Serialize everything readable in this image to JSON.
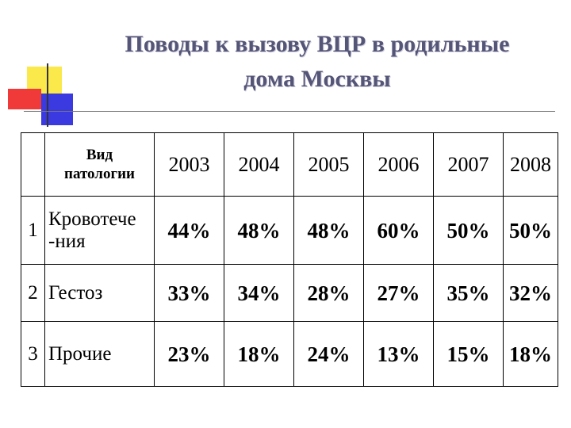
{
  "title": {
    "line1": "Поводы к вызову ВЦР в родильные",
    "line2": "дома Москвы"
  },
  "table": {
    "header_label_line1": "Вид",
    "header_label_line2": "патологии",
    "years": [
      "2003",
      "2004",
      "2005",
      "2006",
      "2007",
      "2008"
    ],
    "rows": [
      {
        "index": "1",
        "name_line1": "Кровотече",
        "name_line2": "-ния",
        "values": [
          "44%",
          "48%",
          "48%",
          "60%",
          "50%",
          "50%"
        ]
      },
      {
        "index": "2",
        "name_line1": "Гестоз",
        "name_line2": "",
        "values": [
          "33%",
          "34%",
          "28%",
          "27%",
          "35%",
          "32%"
        ]
      },
      {
        "index": "3",
        "name_line1": "Прочие",
        "name_line2": "",
        "values": [
          "23%",
          "18%",
          "24%",
          "13%",
          "15%",
          "18%"
        ]
      }
    ]
  },
  "colors": {
    "title": "#555577",
    "deco_yellow": "#fbe84a",
    "deco_red": "#f03a3a",
    "deco_blue": "#3a3ae0"
  }
}
